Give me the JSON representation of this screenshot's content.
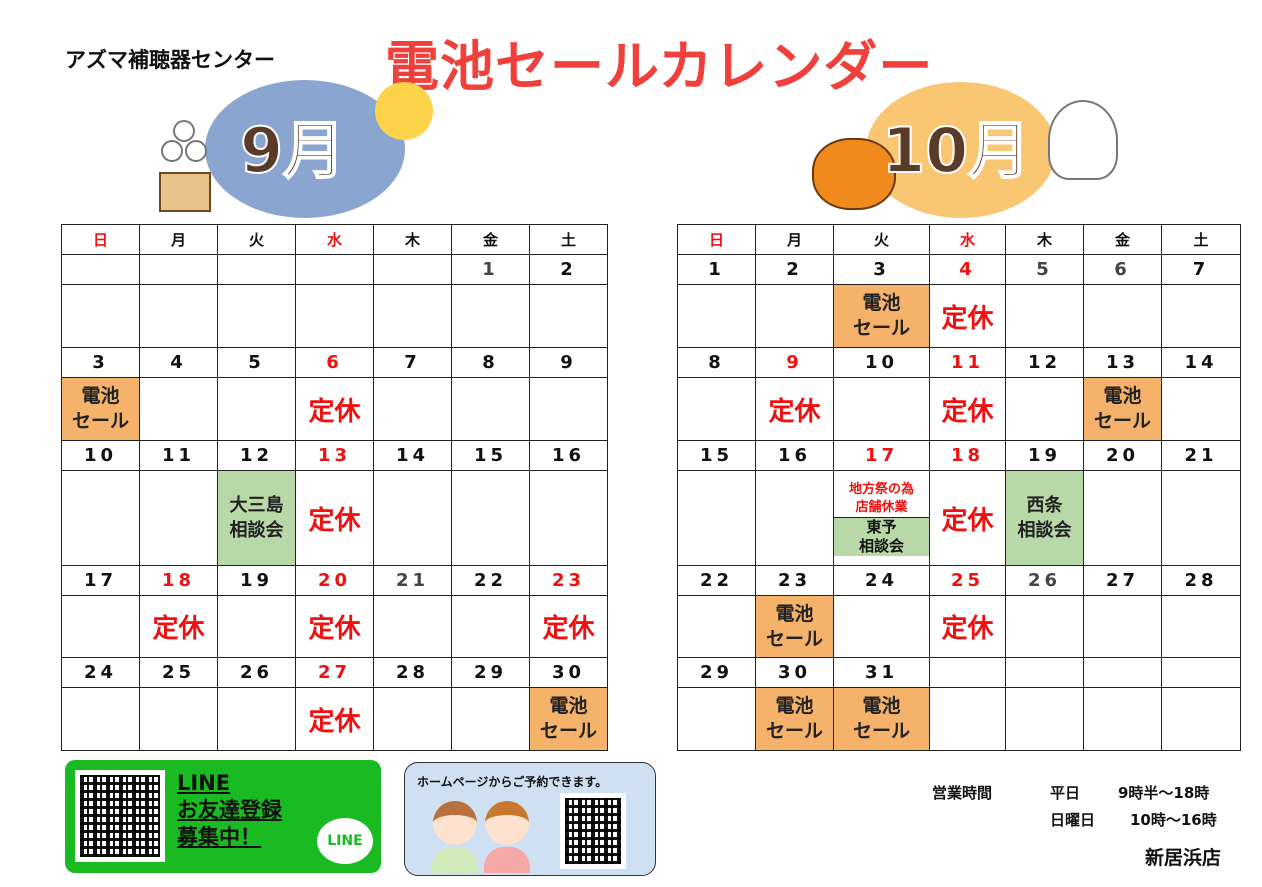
{
  "company": "アズマ補聴器センター",
  "title": "電池セールカレンダー",
  "weekdays": [
    "日",
    "月",
    "火",
    "水",
    "木",
    "金",
    "土"
  ],
  "weekday_colors": [
    "#ee1111",
    "#111111",
    "#111111",
    "#ee1111",
    "#111111",
    "#111111",
    "#111111"
  ],
  "colors": {
    "red": "#ee1111",
    "sale": "#f5b26b",
    "consult": "#b8d8a8",
    "line": "#1aba22"
  },
  "labels": {
    "sale": "電池\nセール",
    "closed": "定休"
  },
  "september": {
    "month_label": "9月",
    "weeks": [
      [
        {},
        {},
        {},
        {},
        {},
        {
          "d": "1",
          "c": "#444444"
        },
        {
          "d": "2"
        }
      ],
      [
        {
          "d": "3",
          "ev": "sale"
        },
        {
          "d": "4"
        },
        {
          "d": "5"
        },
        {
          "d": "6",
          "c": "#ee1111",
          "ev": "closed"
        },
        {
          "d": "7"
        },
        {
          "d": "8"
        },
        {
          "d": "9"
        }
      ],
      [
        {
          "d": "10"
        },
        {
          "d": "11"
        },
        {
          "d": "12",
          "ev": "consult",
          "text": "大三島\n相談会"
        },
        {
          "d": "13",
          "c": "#ee1111",
          "ev": "closed"
        },
        {
          "d": "14"
        },
        {
          "d": "15"
        },
        {
          "d": "16"
        }
      ],
      [
        {
          "d": "17"
        },
        {
          "d": "18",
          "c": "#ee1111",
          "ev": "closed"
        },
        {
          "d": "19"
        },
        {
          "d": "20",
          "c": "#ee1111",
          "ev": "closed"
        },
        {
          "d": "21",
          "c": "#444444"
        },
        {
          "d": "22"
        },
        {
          "d": "23",
          "c": "#ee1111",
          "ev": "closed"
        }
      ],
      [
        {
          "d": "24"
        },
        {
          "d": "25"
        },
        {
          "d": "26"
        },
        {
          "d": "27",
          "c": "#ee1111",
          "ev": "closed"
        },
        {
          "d": "28"
        },
        {
          "d": "29"
        },
        {
          "d": "30",
          "ev": "sale"
        }
      ]
    ]
  },
  "october": {
    "month_label": "10月",
    "weeks": [
      [
        {
          "d": "1"
        },
        {
          "d": "2"
        },
        {
          "d": "3",
          "ev": "sale"
        },
        {
          "d": "4",
          "c": "#ee1111",
          "ev": "closed"
        },
        {
          "d": "5",
          "c": "#444444"
        },
        {
          "d": "6",
          "c": "#444444"
        },
        {
          "d": "7"
        }
      ],
      [
        {
          "d": "8"
        },
        {
          "d": "9",
          "c": "#ee1111",
          "ev": "closed"
        },
        {
          "d": "10"
        },
        {
          "d": "11",
          "c": "#ee1111",
          "ev": "closed"
        },
        {
          "d": "12"
        },
        {
          "d": "13",
          "ev": "sale"
        },
        {
          "d": "14"
        }
      ],
      [
        {
          "d": "15"
        },
        {
          "d": "16"
        },
        {
          "d": "17",
          "c": "#ee1111",
          "ev": "split",
          "top": "地方祭の為\n店舗休業",
          "bottom": "東予\n相談会"
        },
        {
          "d": "18",
          "c": "#ee1111",
          "ev": "closed"
        },
        {
          "d": "19",
          "ev": "consult",
          "text": "西条\n相談会"
        },
        {
          "d": "20"
        },
        {
          "d": "21"
        }
      ],
      [
        {
          "d": "22"
        },
        {
          "d": "23",
          "ev": "sale"
        },
        {
          "d": "24"
        },
        {
          "d": "25",
          "c": "#ee1111",
          "ev": "closed"
        },
        {
          "d": "26",
          "c": "#444444"
        },
        {
          "d": "27"
        },
        {
          "d": "28"
        }
      ],
      [
        {
          "d": "29"
        },
        {
          "d": "30",
          "ev": "sale"
        },
        {
          "d": "31",
          "ev": "sale"
        },
        {},
        {},
        {},
        {}
      ]
    ]
  },
  "line": {
    "text": "LINE\nお友達登録\n募集中！",
    "logo": "LINE"
  },
  "homepage": {
    "text": "ホームページからご予約できます。"
  },
  "hours": {
    "label": "営業時間",
    "weekday_label": "平日",
    "weekday_hours": "9時半～18時",
    "sunday_label": "日曜日",
    "sunday_hours": "10時～16時"
  },
  "store": "新居浜店"
}
